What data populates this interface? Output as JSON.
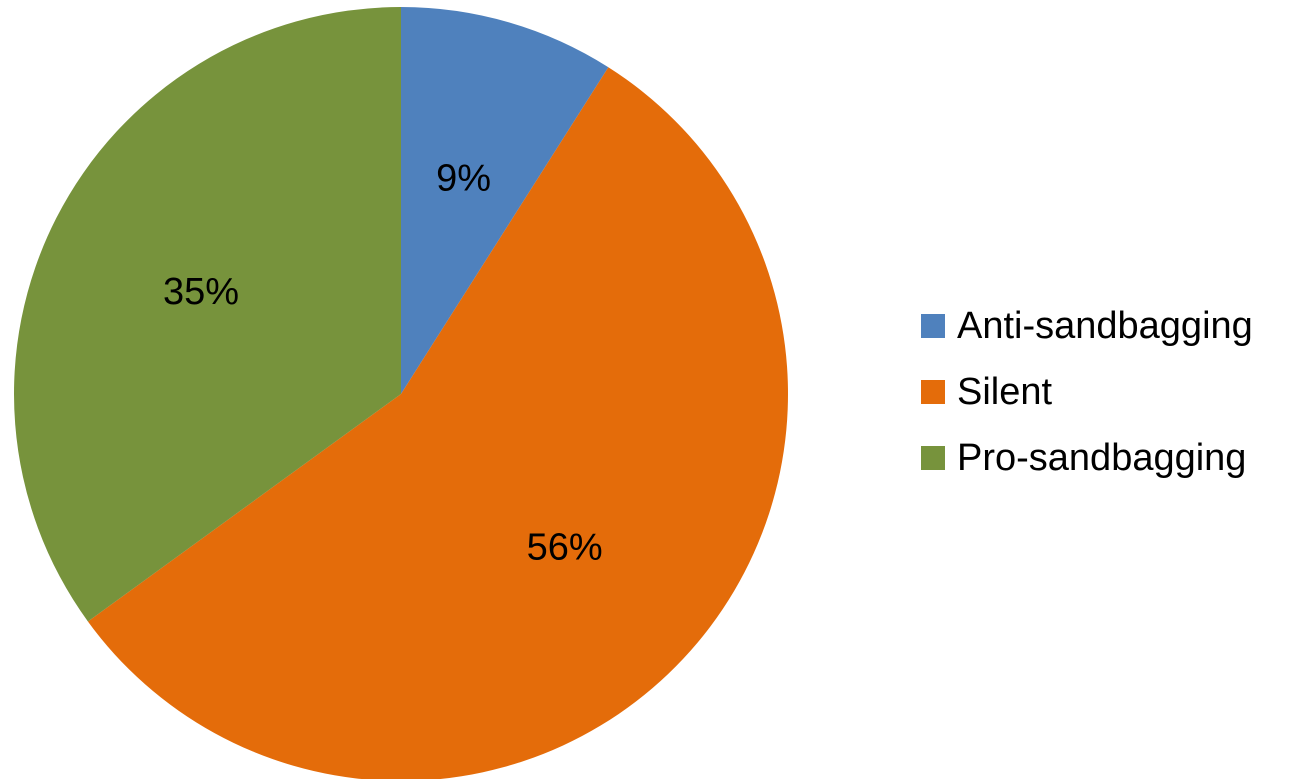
{
  "chart_data": {
    "type": "pie",
    "title": "",
    "categories": [
      "Anti-sandbagging",
      "Silent",
      "Pro-sandbagging"
    ],
    "values": [
      9,
      56,
      35
    ],
    "data_labels": [
      "9%",
      "56%",
      "35%"
    ],
    "colors": [
      "#4f81bd",
      "#e46c0a",
      "#77933c"
    ],
    "start_angle_deg": 0,
    "direction": "clockwise",
    "legend": {
      "position": "right",
      "entries": [
        "Anti-sandbagging",
        "Silent",
        "Pro-sandbagging"
      ]
    }
  }
}
